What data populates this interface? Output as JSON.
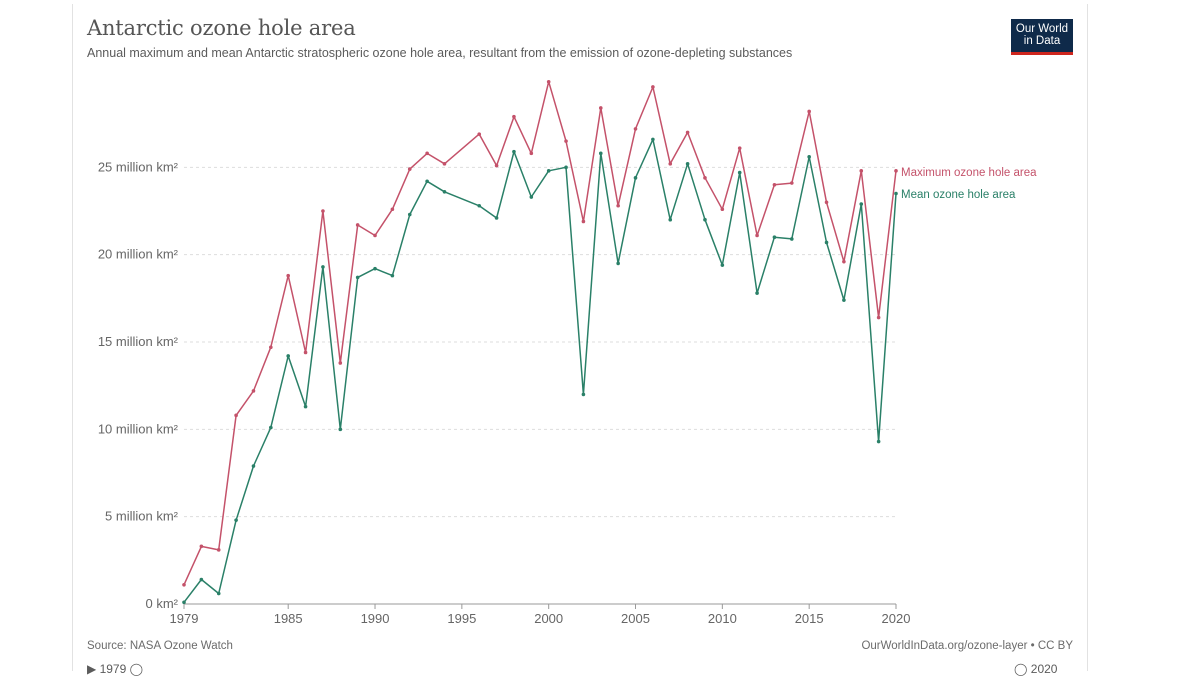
{
  "header": {
    "title": "Antarctic ozone hole area",
    "subtitle": "Annual maximum and mean Antarctic stratospheric ozone hole area, resultant from the emission of ozone-depleting substances",
    "logo_line1": "Our World",
    "logo_line2": "in Data"
  },
  "footer": {
    "source": "Source: NASA Ozone Watch",
    "license": "OurWorldInData.org/ozone-layer • CC BY",
    "timeline_start": "1979",
    "timeline_end": "2020"
  },
  "colors": {
    "max": "#c4526a",
    "mean": "#2a8068",
    "grid": "#dddddd",
    "axis": "#666666"
  },
  "chart_data": {
    "type": "line",
    "title": "Antarctic ozone hole area",
    "x": [
      1979,
      1980,
      1981,
      1982,
      1983,
      1984,
      1985,
      1986,
      1987,
      1988,
      1989,
      1990,
      1991,
      1992,
      1993,
      1994,
      1996,
      1997,
      1998,
      1999,
      2000,
      2001,
      2002,
      2003,
      2004,
      2005,
      2006,
      2007,
      2008,
      2009,
      2010,
      2011,
      2012,
      2013,
      2014,
      2015,
      2016,
      2017,
      2018,
      2019,
      2020
    ],
    "xticks": [
      1979,
      1985,
      1990,
      1995,
      2000,
      2005,
      2010,
      2015,
      2020
    ],
    "xlim": [
      1979,
      2020
    ],
    "yticks": [
      0,
      5,
      10,
      15,
      20,
      25
    ],
    "ytick_labels": [
      "0 km²",
      "5 million km²",
      "10 million km²",
      "15 million km²",
      "20 million km²",
      "25 million km²"
    ],
    "ylim": [
      0,
      30
    ],
    "grid": true,
    "series": [
      {
        "name": "Maximum ozone hole area",
        "color": "#c4526a",
        "values": [
          1.1,
          3.3,
          3.1,
          10.8,
          12.2,
          14.7,
          18.8,
          14.4,
          22.5,
          13.8,
          21.7,
          21.1,
          22.6,
          24.9,
          25.8,
          25.2,
          26.9,
          25.1,
          27.9,
          25.8,
          29.9,
          26.5,
          21.9,
          28.4,
          22.8,
          27.2,
          29.6,
          25.2,
          27.0,
          24.4,
          22.6,
          26.1,
          21.1,
          24.0,
          24.1,
          28.2,
          23.0,
          19.6,
          24.8,
          16.4,
          24.8
        ]
      },
      {
        "name": "Mean ozone hole area",
        "color": "#2a8068",
        "values": [
          0.1,
          1.4,
          0.6,
          4.8,
          7.9,
          10.1,
          14.2,
          11.3,
          19.3,
          10.0,
          18.7,
          19.2,
          18.8,
          22.3,
          24.2,
          23.6,
          22.8,
          22.1,
          25.9,
          23.3,
          24.8,
          25.0,
          12.0,
          25.8,
          19.5,
          24.4,
          26.6,
          22.0,
          25.2,
          22.0,
          19.4,
          24.7,
          17.8,
          21.0,
          20.9,
          25.6,
          20.7,
          17.4,
          22.9,
          9.3,
          23.5
        ]
      }
    ]
  }
}
